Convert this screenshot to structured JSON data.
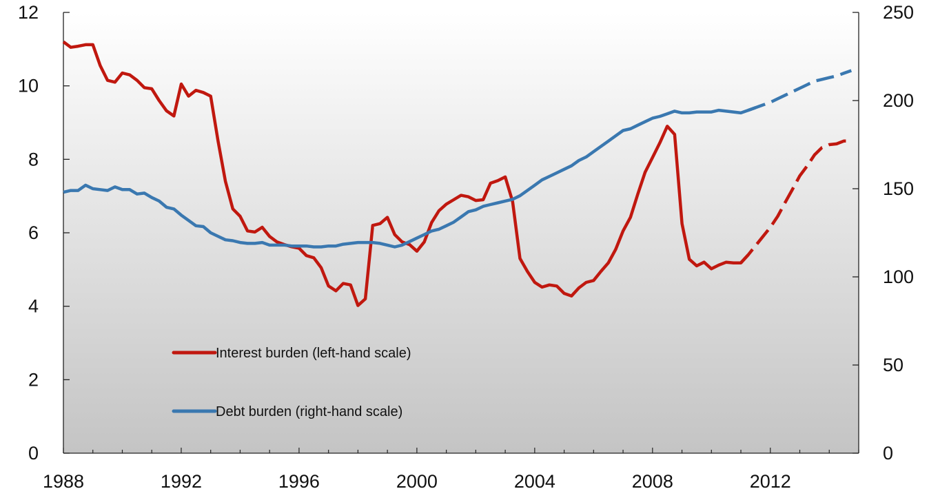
{
  "chart_data": {
    "type": "line",
    "xlim": [
      1988,
      2015
    ],
    "x_ticks": [
      1988,
      1992,
      1996,
      2000,
      2004,
      2008,
      2012
    ],
    "x_tick_labels": [
      "1988",
      "1992",
      "1996",
      "2000",
      "2004",
      "2008",
      "2012"
    ],
    "y_left": {
      "range": [
        0,
        12
      ],
      "ticks": [
        0,
        2,
        4,
        6,
        8,
        10,
        12
      ],
      "tick_labels": [
        "0",
        "2",
        "4",
        "6",
        "8",
        "10",
        "12"
      ]
    },
    "y_right": {
      "range": [
        0,
        250
      ],
      "ticks": [
        0,
        50,
        100,
        150,
        200,
        250
      ],
      "tick_labels": [
        "0",
        "50",
        "100",
        "150",
        "200",
        "250"
      ]
    },
    "grid": false,
    "background": "vertical gradient white to grey",
    "legend": {
      "placement": "lower-left"
    },
    "series": [
      {
        "name": "Interest burden (left-hand scale)",
        "axis": "left",
        "color": "#c0180f",
        "style_segments": [
          {
            "style": "solid",
            "x_end": 2011.2
          },
          {
            "style": "dashed",
            "x_start": 2011.2
          }
        ],
        "points": [
          [
            1988.0,
            11.2
          ],
          [
            1988.25,
            11.05
          ],
          [
            1988.5,
            11.08
          ],
          [
            1988.75,
            11.12
          ],
          [
            1989.0,
            11.12
          ],
          [
            1989.25,
            10.55
          ],
          [
            1989.5,
            10.15
          ],
          [
            1989.75,
            10.1
          ],
          [
            1990.0,
            10.35
          ],
          [
            1990.25,
            10.3
          ],
          [
            1990.5,
            10.15
          ],
          [
            1990.75,
            9.95
          ],
          [
            1991.0,
            9.92
          ],
          [
            1991.25,
            9.6
          ],
          [
            1991.5,
            9.32
          ],
          [
            1991.75,
            9.18
          ],
          [
            1992.0,
            10.05
          ],
          [
            1992.25,
            9.72
          ],
          [
            1992.5,
            9.88
          ],
          [
            1992.75,
            9.82
          ],
          [
            1993.0,
            9.72
          ],
          [
            1993.25,
            8.5
          ],
          [
            1993.5,
            7.4
          ],
          [
            1993.75,
            6.65
          ],
          [
            1994.0,
            6.45
          ],
          [
            1994.25,
            6.05
          ],
          [
            1994.5,
            6.02
          ],
          [
            1994.75,
            6.15
          ],
          [
            1995.0,
            5.9
          ],
          [
            1995.25,
            5.75
          ],
          [
            1995.5,
            5.68
          ],
          [
            1995.75,
            5.62
          ],
          [
            1996.0,
            5.58
          ],
          [
            1996.25,
            5.38
          ],
          [
            1996.5,
            5.32
          ],
          [
            1996.75,
            5.05
          ],
          [
            1997.0,
            4.55
          ],
          [
            1997.25,
            4.42
          ],
          [
            1997.5,
            4.62
          ],
          [
            1997.75,
            4.58
          ],
          [
            1998.0,
            4.02
          ],
          [
            1998.25,
            4.2
          ],
          [
            1998.5,
            6.2
          ],
          [
            1998.75,
            6.25
          ],
          [
            1999.0,
            6.42
          ],
          [
            1999.25,
            5.95
          ],
          [
            1999.5,
            5.75
          ],
          [
            1999.75,
            5.68
          ],
          [
            2000.0,
            5.5
          ],
          [
            2000.25,
            5.75
          ],
          [
            2000.5,
            6.28
          ],
          [
            2000.75,
            6.6
          ],
          [
            2001.0,
            6.78
          ],
          [
            2001.25,
            6.9
          ],
          [
            2001.5,
            7.02
          ],
          [
            2001.75,
            6.98
          ],
          [
            2002.0,
            6.88
          ],
          [
            2002.25,
            6.9
          ],
          [
            2002.5,
            7.35
          ],
          [
            2002.75,
            7.42
          ],
          [
            2003.0,
            7.52
          ],
          [
            2003.25,
            6.85
          ],
          [
            2003.5,
            5.3
          ],
          [
            2003.75,
            4.95
          ],
          [
            2004.0,
            4.65
          ],
          [
            2004.25,
            4.52
          ],
          [
            2004.5,
            4.58
          ],
          [
            2004.75,
            4.55
          ],
          [
            2005.0,
            4.35
          ],
          [
            2005.25,
            4.28
          ],
          [
            2005.5,
            4.5
          ],
          [
            2005.75,
            4.65
          ],
          [
            2006.0,
            4.7
          ],
          [
            2006.25,
            4.95
          ],
          [
            2006.5,
            5.18
          ],
          [
            2006.75,
            5.55
          ],
          [
            2007.0,
            6.05
          ],
          [
            2007.25,
            6.42
          ],
          [
            2007.5,
            7.05
          ],
          [
            2007.75,
            7.65
          ],
          [
            2008.0,
            8.05
          ],
          [
            2008.25,
            8.45
          ],
          [
            2008.5,
            8.9
          ],
          [
            2008.75,
            8.68
          ],
          [
            2009.0,
            6.25
          ],
          [
            2009.25,
            5.28
          ],
          [
            2009.5,
            5.1
          ],
          [
            2009.75,
            5.2
          ],
          [
            2010.0,
            5.02
          ],
          [
            2010.25,
            5.12
          ],
          [
            2010.5,
            5.2
          ],
          [
            2010.75,
            5.18
          ],
          [
            2011.0,
            5.18
          ],
          [
            2011.25,
            5.4
          ],
          [
            2011.5,
            5.65
          ],
          [
            2011.75,
            5.9
          ],
          [
            2012.0,
            6.15
          ],
          [
            2012.25,
            6.45
          ],
          [
            2012.5,
            6.82
          ],
          [
            2012.75,
            7.18
          ],
          [
            2013.0,
            7.55
          ],
          [
            2013.25,
            7.82
          ],
          [
            2013.5,
            8.12
          ],
          [
            2013.75,
            8.32
          ],
          [
            2014.0,
            8.4
          ],
          [
            2014.25,
            8.42
          ],
          [
            2014.5,
            8.5
          ],
          [
            2014.75,
            8.5
          ]
        ]
      },
      {
        "name": "Debt burden (right-hand scale)",
        "axis": "right",
        "color": "#3a78b0",
        "style_segments": [
          {
            "style": "solid",
            "x_end": 2011.4
          },
          {
            "style": "dashed",
            "x_start": 2011.4
          }
        ],
        "points": [
          [
            1988.0,
            148
          ],
          [
            1988.25,
            149
          ],
          [
            1988.5,
            149
          ],
          [
            1988.75,
            152
          ],
          [
            1989.0,
            150
          ],
          [
            1989.25,
            149.5
          ],
          [
            1989.5,
            149
          ],
          [
            1989.75,
            151
          ],
          [
            1990.0,
            149.5
          ],
          [
            1990.25,
            149.5
          ],
          [
            1990.5,
            147
          ],
          [
            1990.75,
            147.5
          ],
          [
            1991.0,
            145
          ],
          [
            1991.25,
            143
          ],
          [
            1991.5,
            139.5
          ],
          [
            1991.75,
            138.5
          ],
          [
            1992.0,
            135
          ],
          [
            1992.25,
            132
          ],
          [
            1992.5,
            129
          ],
          [
            1992.75,
            128.5
          ],
          [
            1993.0,
            125
          ],
          [
            1993.25,
            123
          ],
          [
            1993.5,
            121
          ],
          [
            1993.75,
            120.5
          ],
          [
            1994.0,
            119.5
          ],
          [
            1994.25,
            119
          ],
          [
            1994.5,
            119
          ],
          [
            1994.75,
            119.5
          ],
          [
            1995.0,
            118
          ],
          [
            1995.25,
            118
          ],
          [
            1995.5,
            118
          ],
          [
            1995.75,
            117.5
          ],
          [
            1996.0,
            117.5
          ],
          [
            1996.25,
            117.5
          ],
          [
            1996.5,
            117
          ],
          [
            1996.75,
            117
          ],
          [
            1997.0,
            117.5
          ],
          [
            1997.25,
            117.5
          ],
          [
            1997.5,
            118.5
          ],
          [
            1997.75,
            119
          ],
          [
            1998.0,
            119.5
          ],
          [
            1998.25,
            119.5
          ],
          [
            1998.5,
            119.5
          ],
          [
            1998.75,
            119
          ],
          [
            1999.0,
            118
          ],
          [
            1999.25,
            117
          ],
          [
            1999.5,
            118
          ],
          [
            1999.75,
            120
          ],
          [
            2000.0,
            122
          ],
          [
            2000.25,
            124
          ],
          [
            2000.5,
            126
          ],
          [
            2000.75,
            127
          ],
          [
            2001.0,
            129
          ],
          [
            2001.25,
            131
          ],
          [
            2001.5,
            134
          ],
          [
            2001.75,
            137
          ],
          [
            2002.0,
            138
          ],
          [
            2002.25,
            140
          ],
          [
            2002.5,
            141
          ],
          [
            2002.75,
            142
          ],
          [
            2003.0,
            143
          ],
          [
            2003.25,
            144
          ],
          [
            2003.5,
            146
          ],
          [
            2003.75,
            149
          ],
          [
            2004.0,
            152
          ],
          [
            2004.25,
            155
          ],
          [
            2004.5,
            157
          ],
          [
            2004.75,
            159
          ],
          [
            2005.0,
            161
          ],
          [
            2005.25,
            163
          ],
          [
            2005.5,
            166
          ],
          [
            2005.75,
            168
          ],
          [
            2006.0,
            171
          ],
          [
            2006.25,
            174
          ],
          [
            2006.5,
            177
          ],
          [
            2006.75,
            180
          ],
          [
            2007.0,
            183
          ],
          [
            2007.25,
            184
          ],
          [
            2007.5,
            186
          ],
          [
            2007.75,
            188
          ],
          [
            2008.0,
            190
          ],
          [
            2008.25,
            191
          ],
          [
            2008.5,
            192.5
          ],
          [
            2008.75,
            194
          ],
          [
            2009.0,
            193
          ],
          [
            2009.25,
            193
          ],
          [
            2009.5,
            193.5
          ],
          [
            2009.75,
            193.5
          ],
          [
            2010.0,
            193.5
          ],
          [
            2010.25,
            194.5
          ],
          [
            2010.5,
            194
          ],
          [
            2010.75,
            193.5
          ],
          [
            2011.0,
            193
          ],
          [
            2011.25,
            194.5
          ],
          [
            2011.5,
            196
          ],
          [
            2011.75,
            197.5
          ],
          [
            2012.0,
            199
          ],
          [
            2012.25,
            201
          ],
          [
            2012.5,
            203
          ],
          [
            2012.75,
            205
          ],
          [
            2013.0,
            207
          ],
          [
            2013.25,
            209
          ],
          [
            2013.5,
            211
          ],
          [
            2013.75,
            212
          ],
          [
            2014.0,
            213
          ],
          [
            2014.25,
            214
          ],
          [
            2014.5,
            215.5
          ],
          [
            2014.75,
            217
          ]
        ]
      }
    ]
  },
  "legend_items": [
    {
      "label": "Interest burden (left-hand scale)",
      "color": "#c0180f"
    },
    {
      "label": "Debt burden (right-hand scale)",
      "color": "#3a78b0"
    }
  ]
}
